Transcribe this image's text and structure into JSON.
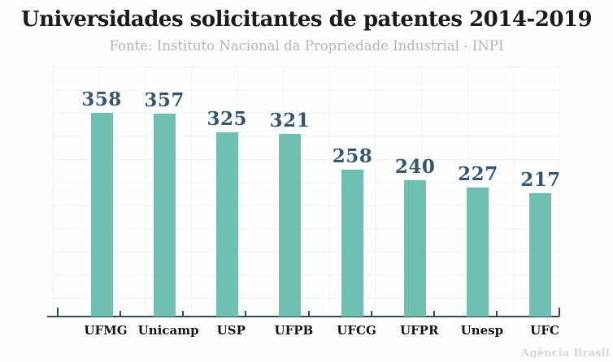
{
  "chart_data": {
    "type": "bar",
    "title": "Universidades solicitantes de patentes 2014-2019",
    "subtitle": "Fonte: Instituto Nacional da Propriedade Industrial - INPI",
    "categories": [
      "UFMG",
      "Unicamp",
      "USP",
      "UFPB",
      "UFCG",
      "UFPR",
      "Unesp",
      "UFC"
    ],
    "values": [
      358,
      357,
      325,
      321,
      258,
      240,
      227,
      217
    ],
    "xlabel": "",
    "ylabel": "",
    "ylim": [
      0,
      440
    ],
    "grid": true,
    "legend": false,
    "value_labels_shown": true
  },
  "watermark": "Agência Brasil",
  "colors": {
    "bar": "#6fc0b0",
    "value_label": "#35566b",
    "axis": "#2e4d59",
    "title": "#1b1b1b",
    "subtitle": "#b5b5b5",
    "gridline": "#f3f3f3",
    "watermark": "#d7d7d7",
    "background": "#fefefe"
  }
}
